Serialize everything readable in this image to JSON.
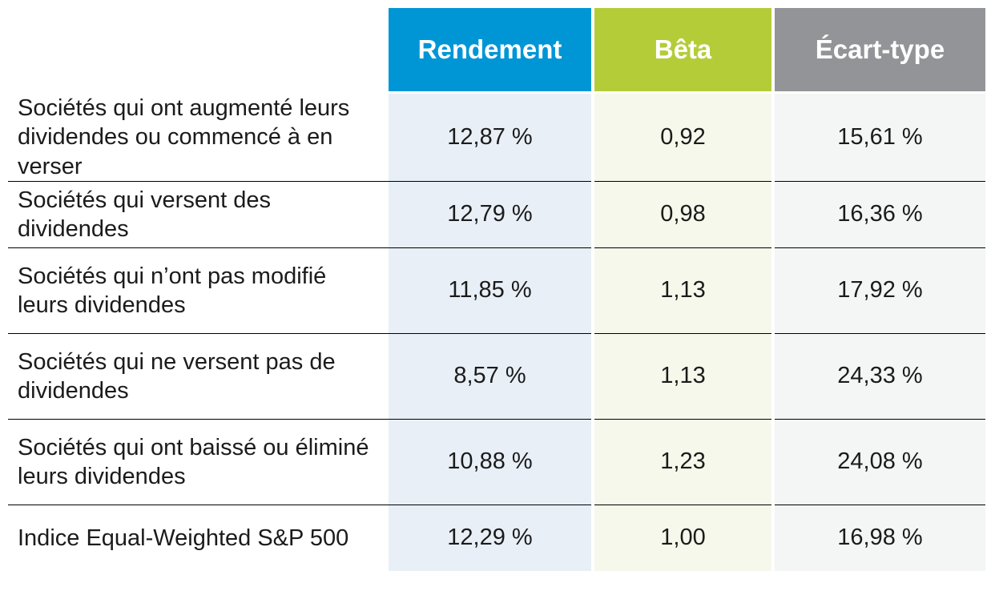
{
  "table": {
    "type": "table",
    "header_colors": {
      "rendement": "#0096d6",
      "beta": "#b5cc39",
      "ecart": "#929497"
    },
    "column_bg_colors": {
      "label": "#ffffff",
      "rendement": "#e8eff7",
      "beta": "#f6f8eb",
      "ecart": "#f4f5f5"
    },
    "text_color": "#1b1b1b",
    "separator_color": "#000000",
    "header_font_size_pt": 25,
    "body_font_size_pt": 22,
    "columns": [
      {
        "key": "label",
        "header": ""
      },
      {
        "key": "rendement",
        "header": "Rendement"
      },
      {
        "key": "beta",
        "header": "Bêta"
      },
      {
        "key": "ecart",
        "header": "Écart-type"
      }
    ],
    "rows": [
      {
        "label": "Sociétés qui ont augmenté leurs dividendes ou commencé à en verser",
        "rendement": "12,87 %",
        "beta": "0,92",
        "ecart": "15,61 %",
        "tall": true
      },
      {
        "label": "Sociétés qui versent des dividendes",
        "rendement": "12,79 %",
        "beta": "0,98",
        "ecart": "16,36 %",
        "tall": false
      },
      {
        "label": "Sociétés qui n’ont pas modifié leurs dividendes",
        "rendement": "11,85 %",
        "beta": "1,13",
        "ecart": "17,92 %",
        "tall": true
      },
      {
        "label": "Sociétés qui ne versent pas de dividendes",
        "rendement": "8,57 %",
        "beta": "1,13",
        "ecart": "24,33 %",
        "tall": true
      },
      {
        "label": "Sociétés qui ont baissé ou éliminé leurs dividendes",
        "rendement": "10,88 %",
        "beta": "1,23",
        "ecart": "24,08 %",
        "tall": true
      },
      {
        "label": "Indice Equal-Weighted S&P 500",
        "rendement": "12,29 %",
        "beta": "1,00",
        "ecart": "16,98 %",
        "tall": false
      }
    ]
  }
}
